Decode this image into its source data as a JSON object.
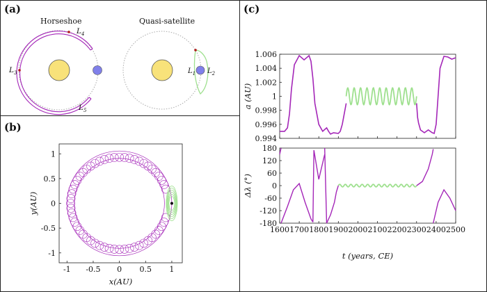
{
  "panels": {
    "a": {
      "label": "(a)",
      "horseshoe": {
        "title": "Horseshoe",
        "L3": "L",
        "L3sub": "3",
        "L4": "L",
        "L4sub": "4",
        "L5": "L",
        "L5sub": "5"
      },
      "quasi": {
        "title": "Quasi-satellite",
        "L1": "L",
        "L1sub": "1",
        "L2": "L",
        "L2sub": "2"
      }
    },
    "b": {
      "label": "(b)"
    },
    "c": {
      "label": "(c)"
    }
  },
  "colors": {
    "purple": "#a426b8",
    "green": "#9ee08e",
    "sun": "#f8e27a",
    "planet": "#8080ea",
    "frame": "#222222"
  },
  "chart_data": [
    {
      "type": "scatter",
      "panel": "b",
      "description_items": [
        "horseshoe loops",
        "quasi-satellite loops"
      ],
      "xlabel": "x(AU)",
      "ylabel": "y(AU)",
      "xlim": [
        -1.15,
        1.2
      ],
      "ylim": [
        -1.2,
        1.2
      ],
      "xticks": [
        -1,
        -0.5,
        0,
        0.5,
        1
      ],
      "yticks": [
        -1,
        -0.5,
        0,
        0.5,
        1
      ],
      "series": [
        {
          "color": "#a426b8",
          "ring_radius_range": [
            0.995,
            1.005
          ]
        },
        {
          "color": "#9ee08e",
          "center": [
            1.0,
            0.0
          ]
        }
      ]
    },
    {
      "type": "line",
      "panel": "c-top",
      "xlabel": "",
      "ylabel": "a (AU)",
      "xlim": [
        1600,
        2500
      ],
      "ylim": [
        0.994,
        1.006
      ],
      "yticks": [
        0.994,
        0.996,
        0.998,
        1,
        1.002,
        1.004,
        1.006
      ],
      "ytick_labels": [
        "0.994",
        "0.996",
        "0.998",
        "1",
        "1.002",
        "1.004",
        "1.006"
      ],
      "series": [
        {
          "color": "#a426b8",
          "x": [
            1600,
            1625,
            1640,
            1650,
            1660,
            1675,
            1700,
            1725,
            1750,
            1760,
            1770,
            1780,
            1800,
            1820,
            1840,
            1850,
            1860,
            1875,
            1900,
            1910,
            1920,
            1940,
            2300,
            2305,
            2310,
            2320,
            2340,
            2360,
            2380,
            2390,
            2400,
            2410,
            2420,
            2440,
            2460,
            2480,
            2500
          ],
          "y": [
            0.995,
            0.995,
            0.9955,
            0.9975,
            1.001,
            1.0045,
            1.0058,
            1.0052,
            1.0058,
            1.005,
            1.0025,
            0.999,
            0.996,
            0.995,
            0.9955,
            0.995,
            0.9946,
            0.9948,
            0.9947,
            0.995,
            0.996,
            0.999,
            0.999,
            0.997,
            0.9962,
            0.9952,
            0.9948,
            0.9952,
            0.9948,
            0.9947,
            0.996,
            1.0,
            1.004,
            1.0057,
            1.0056,
            1.0053,
            1.0055
          ]
        },
        {
          "color": "#9ee08e",
          "x": [
            1940,
            2300
          ],
          "y_center": 1.0,
          "oscillation_amplitude": 0.0012,
          "cycles": 11
        }
      ]
    },
    {
      "type": "line",
      "panel": "c-bottom",
      "xlabel": "t (years, CE)",
      "ylabel": "Δλ (°)",
      "xlim": [
        1600,
        2500
      ],
      "ylim": [
        -180,
        180
      ],
      "xticks": [
        1600,
        1700,
        1800,
        1900,
        2000,
        2100,
        2200,
        2300,
        2400,
        2500
      ],
      "yticks": [
        -180,
        -120,
        -60,
        0,
        60,
        120,
        180
      ],
      "series": [
        {
          "color": "#a426b8",
          "segments": [
            {
              "x": [
                1600,
                1607
              ],
              "y": [
                150,
                180
              ]
            },
            {
              "x": [
                1607,
                1640,
                1670,
                1700,
                1730,
                1760,
                1770
              ],
              "y": [
                -180,
                -100,
                -20,
                10,
                -80,
                -160,
                -175
              ]
            },
            {
              "x": [
                1770,
                1775,
                1800,
                1830
              ],
              "y": [
                -175,
                170,
                30,
                150
              ]
            },
            {
              "x": [
                1830,
                1840,
                1860,
                1880,
                1890,
                1900
              ],
              "y": [
                180,
                -180,
                -140,
                -80,
                -30,
                0
              ]
            },
            {
              "x": [
                2300,
                2330,
                2360,
                2380,
                2385
              ],
              "y": [
                0,
                20,
                80,
                150,
                175
              ]
            },
            {
              "x": [
                2385,
                2390,
                2410,
                2440,
                2470,
                2500
              ],
              "y": [
                -180,
                -160,
                -80,
                -20,
                -60,
                -120
              ]
            }
          ]
        },
        {
          "color": "#9ee08e",
          "x": [
            1900,
            2300
          ],
          "y_center": 0,
          "oscillation_amplitude": 6,
          "cycles": 14
        }
      ]
    }
  ]
}
